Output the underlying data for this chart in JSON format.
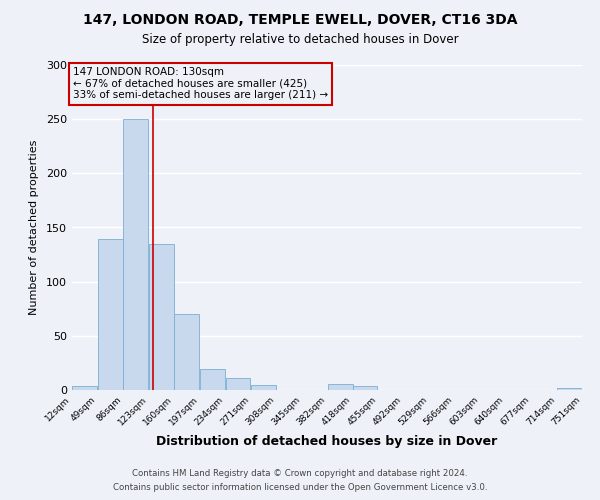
{
  "title": "147, LONDON ROAD, TEMPLE EWELL, DOVER, CT16 3DA",
  "subtitle": "Size of property relative to detached houses in Dover",
  "xlabel": "Distribution of detached houses by size in Dover",
  "ylabel": "Number of detached properties",
  "bin_edges": [
    12,
    49,
    86,
    123,
    160,
    197,
    234,
    271,
    308,
    345,
    382,
    418,
    455,
    492,
    529,
    566,
    603,
    640,
    677,
    714,
    751
  ],
  "bar_heights": [
    4,
    139,
    250,
    135,
    70,
    19,
    11,
    5,
    0,
    0,
    6,
    4,
    0,
    0,
    0,
    0,
    0,
    0,
    0,
    2
  ],
  "bar_color": "#c9d9ed",
  "bar_edgecolor": "#7bafd4",
  "vline_x": 130,
  "vline_color": "#cc0000",
  "annotation_title": "147 LONDON ROAD: 130sqm",
  "annotation_line1": "← 67% of detached houses are smaller (425)",
  "annotation_line2": "33% of semi-detached houses are larger (211) →",
  "annotation_box_edgecolor": "#cc0000",
  "ylim": [
    0,
    300
  ],
  "yticks": [
    0,
    50,
    100,
    150,
    200,
    250,
    300
  ],
  "footer1": "Contains HM Land Registry data © Crown copyright and database right 2024.",
  "footer2": "Contains public sector information licensed under the Open Government Licence v3.0.",
  "bg_color": "#eef2f8",
  "grid_color": "#ffffff"
}
